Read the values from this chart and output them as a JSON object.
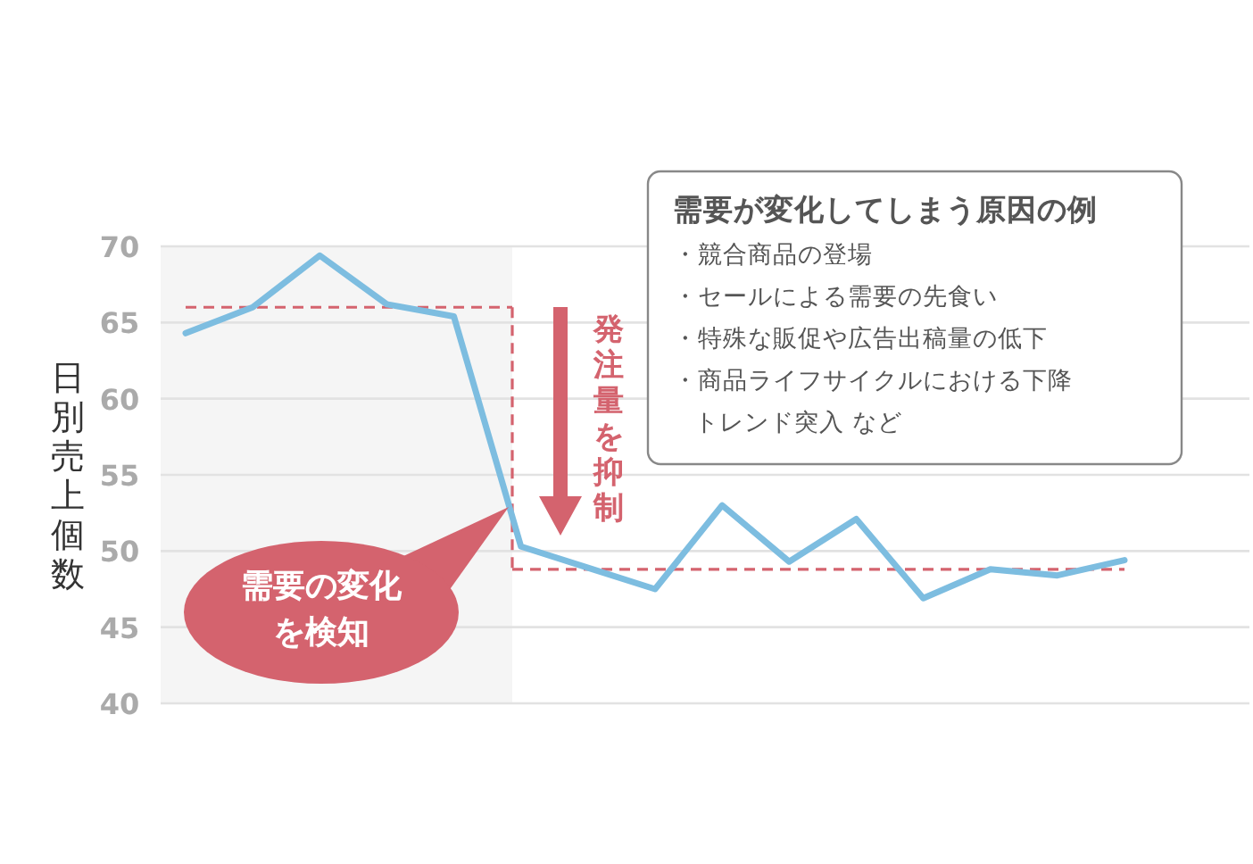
{
  "chart_data": {
    "type": "line",
    "ylabel": "日別売上個数",
    "categories": [
      null,
      null,
      null,
      null,
      null,
      null,
      null,
      null,
      null,
      null,
      null,
      null,
      null,
      null,
      null
    ],
    "series": [
      {
        "color": "#7dbde0",
        "values": [
          64.3,
          66.0,
          69.4,
          66.2,
          65.4,
          50.3,
          48.9,
          47.5,
          53.0,
          49.3,
          52.1,
          46.9,
          48.8,
          48.4,
          49.4
        ]
      }
    ],
    "ylim": [
      40,
      70
    ],
    "yticks": [
      40,
      45,
      50,
      55,
      60,
      65,
      70
    ],
    "grid": "y",
    "tick_labels": "y",
    "marker": "none",
    "line_style": "solid",
    "ref_lines": [
      {
        "axis": "y",
        "value": 66,
        "color": "#d4636e",
        "line_style": "dashed"
      },
      {
        "axis": "y",
        "value": 48.8,
        "color": "#d4636e",
        "line_style": "dashed"
      }
    ],
    "annotations": [
      "需要の変化",
      "を検知",
      "発注量を抑制",
      "需要が変化してしまう原因の例",
      "・競合商品の登場",
      "・セールによる需要の先食い",
      "・特殊な販促や広告出稿量の低下",
      "・商品ライフサイクルにおける下降",
      "トレンド突入 など"
    ]
  }
}
